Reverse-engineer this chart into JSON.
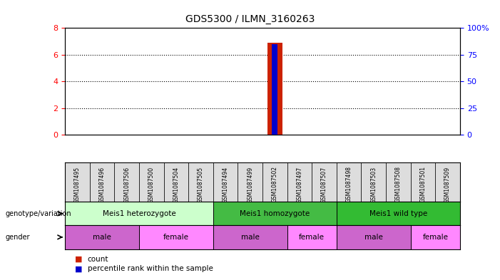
{
  "title": "GDS5300 / ILMN_3160263",
  "samples": [
    "GSM1087495",
    "GSM1087496",
    "GSM1087506",
    "GSM1087500",
    "GSM1087504",
    "GSM1087505",
    "GSM1087494",
    "GSM1087499",
    "GSM1087502",
    "GSM1087497",
    "GSM1087507",
    "GSM1087498",
    "GSM1087503",
    "GSM1087508",
    "GSM1087501",
    "GSM1087509"
  ],
  "bar_values": [
    0,
    0,
    0,
    0,
    0,
    0,
    0,
    0,
    6.9,
    0,
    0,
    0,
    0,
    0,
    0,
    0
  ],
  "percentile_values": [
    0,
    0,
    0,
    0,
    0,
    0,
    0,
    0,
    0.85,
    0,
    0,
    0,
    0,
    0,
    0,
    0
  ],
  "bar_color": "#cc2200",
  "percentile_color": "#0000cc",
  "ylim_left": [
    0,
    8
  ],
  "ylim_right": [
    0,
    100
  ],
  "yticks_left": [
    0,
    2,
    4,
    6,
    8
  ],
  "yticks_right": [
    0,
    25,
    50,
    75,
    100
  ],
  "ytick_labels_right": [
    "0",
    "25",
    "50",
    "75",
    "100%"
  ],
  "grid_color": "black",
  "grid_style": "dotted",
  "grid_values": [
    2,
    4,
    6
  ],
  "genotype_groups": [
    {
      "label": "Meis1 heterozygote",
      "start": 0,
      "end": 5,
      "color": "#ccffcc"
    },
    {
      "label": "Meis1 homozygote",
      "start": 6,
      "end": 10,
      "color": "#44bb44"
    },
    {
      "label": "Meis1 wild type",
      "start": 11,
      "end": 15,
      "color": "#33bb33"
    }
  ],
  "gender_groups": [
    {
      "label": "male",
      "start": 0,
      "end": 2,
      "color": "#cc66cc"
    },
    {
      "label": "female",
      "start": 3,
      "end": 5,
      "color": "#ff88ff"
    },
    {
      "label": "male",
      "start": 6,
      "end": 8,
      "color": "#cc66cc"
    },
    {
      "label": "female",
      "start": 9,
      "end": 10,
      "color": "#ff88ff"
    },
    {
      "label": "male",
      "start": 11,
      "end": 13,
      "color": "#cc66cc"
    },
    {
      "label": "female",
      "start": 14,
      "end": 15,
      "color": "#ff88ff"
    }
  ],
  "legend_items": [
    {
      "label": "count",
      "color": "#cc2200"
    },
    {
      "label": "percentile rank within the sample",
      "color": "#0000cc"
    }
  ],
  "axis_left_color": "red",
  "axis_right_color": "blue",
  "sample_box_color": "#dddddd",
  "bar_width": 0.6
}
